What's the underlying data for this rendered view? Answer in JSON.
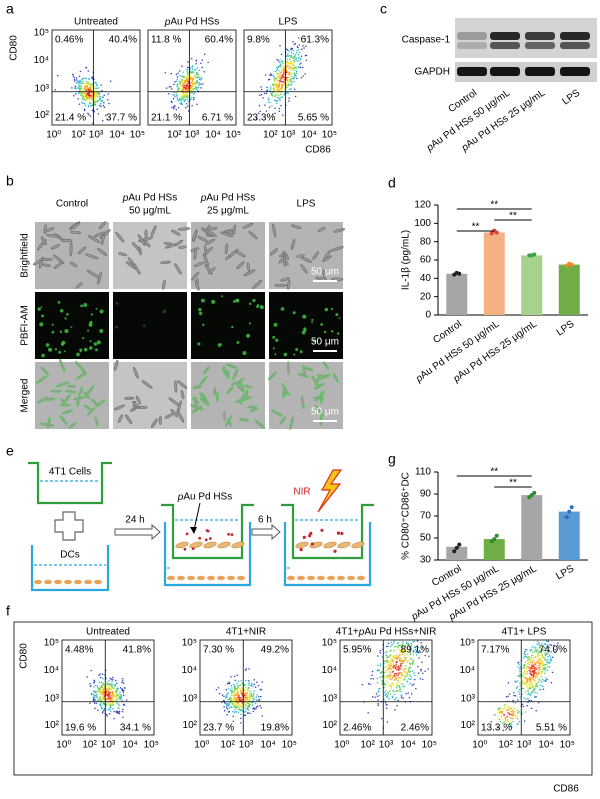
{
  "panel_labels": [
    "a",
    "b",
    "c",
    "d",
    "e",
    "f",
    "g"
  ],
  "flow_a": {
    "x_label": "CD86",
    "y_label": "CD80",
    "x_ticks": [
      "10⁰",
      "10²",
      "10³",
      "10⁴",
      "10⁵"
    ],
    "y_ticks": [
      "10²",
      "10³",
      "10⁴",
      "10⁵"
    ],
    "plots": [
      {
        "title": "Untreated",
        "quadrants": [
          "0.46%",
          "40.4%",
          "21.4 %",
          "37.7 %"
        ]
      },
      {
        "title": "pAu Pd HSs",
        "quadrants": [
          "11.8 %",
          "60.4%",
          "21.1 %",
          "6.71 %"
        ]
      },
      {
        "title": "LPS",
        "quadrants": [
          "9.8%",
          "61.3%",
          "23.3%",
          "5.65 %"
        ]
      }
    ]
  },
  "images_b": {
    "columns": [
      [
        "Control"
      ],
      [
        "pAu Pd HSs",
        "50 μg/mL"
      ],
      [
        "pAu Pd HSs",
        "25 μg/mL"
      ],
      [
        "LPS"
      ]
    ],
    "rows": [
      "Brightfield",
      "PBFI-AM",
      "Merged"
    ],
    "scale_bar": "50 μm"
  },
  "blot_c": {
    "bands": [
      "Caspase-1",
      "GAPDH"
    ],
    "lanes": [
      "Control",
      "pAu Pd HSs 50 μg/mL",
      "pAu Pd HSs 25 μg/mL",
      "LPS"
    ]
  },
  "diagram_e": {
    "top_well": "4T1 Cells",
    "bottom_well": "DCs",
    "step1": "24 h",
    "particles": "pAu Pd HSs",
    "step2": "6 h",
    "light": "NIR"
  },
  "flow_f": {
    "x_label": "CD86",
    "y_label": "CD80",
    "x_ticks": [
      "10⁰",
      "10²",
      "10³",
      "10⁴",
      "10⁵"
    ],
    "y_ticks": [
      "10²",
      "10³",
      "10⁴",
      "10⁵"
    ],
    "plots": [
      {
        "title": "Untreated",
        "quadrants": [
          "4.48%",
          "41.8%",
          "19.6 %",
          "34.1 %"
        ]
      },
      {
        "title": "4T1+NIR",
        "quadrants": [
          "7.30 %",
          "49.2%",
          "23.7 %",
          "19.8%"
        ]
      },
      {
        "title": "4T1+pAu Pd HSs+NIR",
        "quadrants": [
          "5.95%",
          "89.1%",
          "2.46%",
          "2.46%"
        ]
      },
      {
        "title": "4T1+ LPS",
        "quadrants": [
          "7.17%",
          "74.0%",
          "13.3 %",
          "5.51 %"
        ]
      }
    ]
  },
  "chart_data": [
    {
      "type": "bar",
      "y_label": "IL-1β (pg/mL)",
      "categories": [
        "Control",
        "pAu Pd HSs 50 μg/mL",
        "pAu Pd HSs 25 μg/mL",
        "LPS"
      ],
      "values": [
        45,
        90,
        65,
        55
      ],
      "points": [
        [
          44,
          46,
          45
        ],
        [
          89,
          92,
          90
        ],
        [
          65,
          65,
          66
        ],
        [
          54,
          56,
          55
        ]
      ],
      "colors": [
        "#a6a6a6",
        "#f4b183",
        "#a9d18e",
        "#70ad47"
      ],
      "point_colors": [
        "#222222",
        "#e0403a",
        "#3aa34a",
        "#f08a30"
      ],
      "ylim": [
        0,
        120
      ],
      "yticks": [
        0,
        20,
        40,
        60,
        80,
        100,
        120
      ],
      "significance": [
        "**",
        "**",
        "**"
      ]
    },
    {
      "type": "bar",
      "y_label": "% CD80⁺CD86⁺DC",
      "categories": [
        "Control",
        "pAu Pd HSs 50 μg/mL",
        "pAu Pd HSs 25 μg/mL",
        "LPS"
      ],
      "values": [
        42,
        49,
        89,
        74
      ],
      "points": [
        [
          38,
          41,
          44
        ],
        [
          47,
          49,
          52
        ],
        [
          87,
          89,
          91
        ],
        [
          69,
          74,
          78
        ]
      ],
      "colors": [
        "#a6a6a6",
        "#70ad47",
        "#a6a6a6",
        "#5b9bd5"
      ],
      "point_colors": [
        "#222222",
        "#2f8a2f",
        "#2f8a2f",
        "#2a6fb8"
      ],
      "ylim": [
        30,
        110
      ],
      "yticks": [
        30,
        50,
        70,
        90,
        110
      ],
      "significance": [
        "**",
        "**"
      ]
    }
  ]
}
